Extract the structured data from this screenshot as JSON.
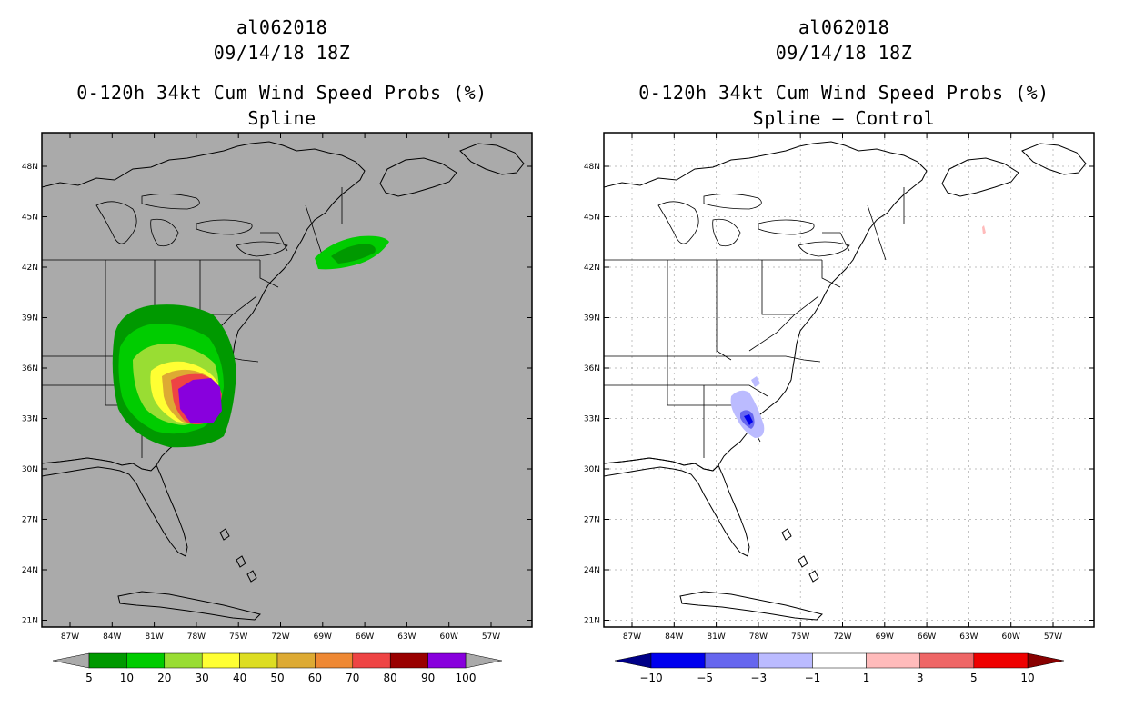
{
  "panels": [
    {
      "storm_id": "al062018",
      "datetime": "09/14/18 18Z",
      "product": "0-120h 34kt Cum Wind Speed Probs (%)",
      "subtitle": "Spline",
      "background": "#aaaaaa",
      "colorbar": {
        "colors": [
          "#009900",
          "#00cc00",
          "#99dd33",
          "#ffff33",
          "#dddd22",
          "#ddaa33",
          "#ee8833",
          "#ee4444",
          "#990000",
          "#8800dd"
        ],
        "labels": [
          "5",
          "10",
          "20",
          "30",
          "40",
          "50",
          "60",
          "70",
          "80",
          "90",
          "100"
        ]
      }
    },
    {
      "storm_id": "al062018",
      "datetime": "09/14/18 18Z",
      "product": "0-120h 34kt Cum Wind Speed Probs (%)",
      "subtitle": "Spline – Control",
      "background": "#ffffff",
      "colorbar": {
        "colors": [
          "#000088",
          "#0000ee",
          "#6666ee",
          "#bbbbff",
          "#ffffff",
          "#ffbbbb",
          "#ee6666",
          "#ee0000",
          "#880000"
        ],
        "labels": [
          "−10",
          "−5",
          "−3",
          "−1",
          "1",
          "3",
          "5",
          "10"
        ]
      }
    }
  ],
  "map": {
    "lat_ticks": [
      "48N",
      "45N",
      "42N",
      "39N",
      "36N",
      "33N",
      "30N",
      "27N",
      "24N",
      "21N"
    ],
    "lon_ticks": [
      "87W",
      "84W",
      "81W",
      "78W",
      "75W",
      "72W",
      "69W",
      "66W",
      "63W",
      "60W",
      "57W"
    ],
    "land_color": "#ffffff",
    "line_color": "#000000"
  }
}
